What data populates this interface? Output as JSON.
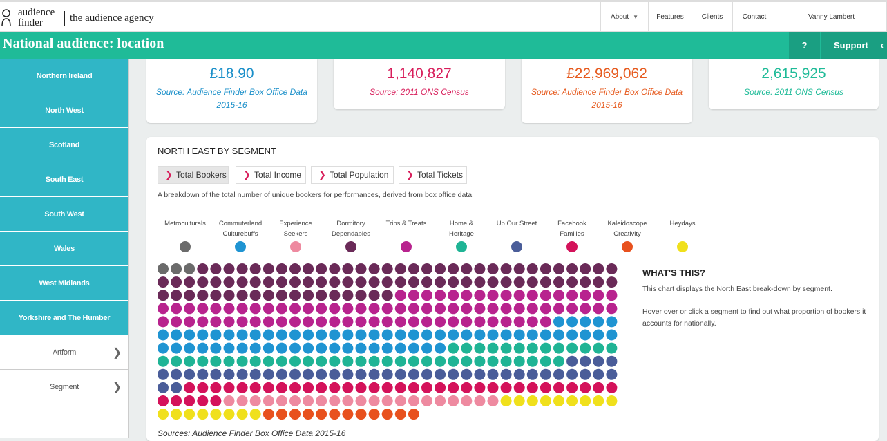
{
  "header": {
    "logo_line1": "audience",
    "logo_line2": "finder",
    "agency": "the audience agency",
    "nav": [
      {
        "label": "About",
        "has_caret": true
      },
      {
        "label": "Features"
      },
      {
        "label": "Clients"
      },
      {
        "label": "Contact"
      },
      {
        "label": "Vanny Lambert"
      }
    ]
  },
  "titlebar": {
    "title": "National audience: location",
    "help_label": "?",
    "support_label": "Support"
  },
  "sidebar": {
    "items": [
      {
        "label": "Northern Ireland"
      },
      {
        "label": "North West"
      },
      {
        "label": "Scotland"
      },
      {
        "label": "South East"
      },
      {
        "label": "South West"
      },
      {
        "label": "Wales"
      },
      {
        "label": "West Midlands"
      },
      {
        "label": "Yorkshire and The Humber"
      }
    ],
    "filters": [
      {
        "label": "Artform"
      },
      {
        "label": "Segment"
      }
    ]
  },
  "stats": [
    {
      "value": "£18.90",
      "source": "Source: Audience Finder Box Office Data 2015-16",
      "color": "#1a8fc9"
    },
    {
      "value": "1,140,827",
      "source": "Source: 2011 ONS Census",
      "color": "#d81e5b"
    },
    {
      "value": "£22,969,062",
      "source": "Source: Audience Finder Box Office Data 2015-16",
      "color": "#e65a1e"
    },
    {
      "value": "2,615,925",
      "source": "Source: 2011 ONS Census",
      "color": "#1fbb98"
    }
  ],
  "panel": {
    "title": "NORTH EAST BY SEGMENT",
    "tabs": [
      {
        "label": "Total Bookers",
        "active": true
      },
      {
        "label": "Total Income"
      },
      {
        "label": "Total Population"
      },
      {
        "label": "Total Tickets"
      }
    ],
    "description": "A breakdown of the total number of unique bookers for performances, derived from box office data",
    "whats_title": "WHAT'S THIS?",
    "whats_text1": "This chart displays the North East break-down by segment.",
    "whats_text2": "Hover over or click a segment to find out what proportion of bookers it accounts for nationally.",
    "sources": "Sources: Audience Finder Box Office Data 2015-16"
  },
  "chart_data": {
    "type": "waffle",
    "columns": 35,
    "series": [
      {
        "name": "Metroculturals",
        "color": "#6b6b6b",
        "dots": 3
      },
      {
        "name": "Dormitory Dependables",
        "color": "#6a2a58",
        "dots": 85
      },
      {
        "name": "Trips & Treats",
        "color": "#b8238e",
        "dots": 82
      },
      {
        "name": "Commuterland Culturebuffs",
        "color": "#1f94d2",
        "dots": 62
      },
      {
        "name": "Home & Heritage",
        "color": "#1fb495",
        "dots": 44
      },
      {
        "name": "Up Our Street",
        "color": "#4a5d99",
        "dots": 41
      },
      {
        "name": "Facebook Families",
        "color": "#d4125a",
        "dots": 38
      },
      {
        "name": "Experience Seekers",
        "color": "#ee8aa0",
        "dots": 21
      },
      {
        "name": "Heydays",
        "color": "#f0e01c",
        "dots": 17
      },
      {
        "name": "Kaleidoscope Creativity",
        "color": "#e8511e",
        "dots": 12
      }
    ],
    "legend": [
      {
        "line1": "Metroculturals",
        "line2": "",
        "color": "#6b6b6b"
      },
      {
        "line1": "Commuterland",
        "line2": "Culturebuffs",
        "color": "#1f94d2"
      },
      {
        "line1": "Experience",
        "line2": "Seekers",
        "color": "#ee8aa0"
      },
      {
        "line1": "Dormitory",
        "line2": "Dependables",
        "color": "#6a2a58"
      },
      {
        "line1": "Trips & Treats",
        "line2": "",
        "color": "#b8238e"
      },
      {
        "line1": "Home &",
        "line2": "Heritage",
        "color": "#1fb495"
      },
      {
        "line1": "Up Our Street",
        "line2": "",
        "color": "#4a5d99"
      },
      {
        "line1": "Facebook",
        "line2": "Families",
        "color": "#d4125a"
      },
      {
        "line1": "Kaleidoscope",
        "line2": "Creativity",
        "color": "#e8511e"
      },
      {
        "line1": "Heydays",
        "line2": "",
        "color": "#f0e01c"
      }
    ]
  }
}
